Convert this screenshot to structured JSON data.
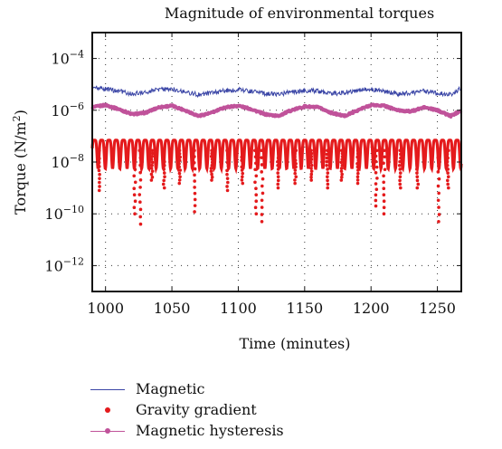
{
  "chart_data": {
    "type": "line",
    "title": "Magnitude of environmental torques",
    "xlabel": "Time (minutes)",
    "ylabel_base": "Torque (N/m",
    "ylabel_sup": "2",
    "ylabel_tail": ")",
    "xlim": [
      990,
      1268
    ],
    "ylim_log10": [
      -13,
      -3
    ],
    "yscale": "log",
    "grid": true,
    "legend_position": "below",
    "x_ticks": [
      1000,
      1050,
      1100,
      1150,
      1200,
      1250
    ],
    "x_tick_labels": [
      "1000",
      "1050",
      "1100",
      "1150",
      "1200",
      "1250"
    ],
    "y_ticks_exp": [
      -4,
      -6,
      -8,
      -10,
      -12
    ],
    "y_tick_labels": [
      {
        "base": "10",
        "exp": "−4"
      },
      {
        "base": "10",
        "exp": "−6"
      },
      {
        "base": "10",
        "exp": "−8"
      },
      {
        "base": "10",
        "exp": "−10"
      },
      {
        "base": "10",
        "exp": "−12"
      }
    ],
    "series": [
      {
        "name": "Magnetic",
        "color": "#3a45a6",
        "style": "line",
        "x": [
          990,
          1000,
          1010,
          1020,
          1030,
          1040,
          1050,
          1060,
          1070,
          1080,
          1090,
          1100,
          1110,
          1120,
          1130,
          1140,
          1150,
          1160,
          1170,
          1180,
          1190,
          1200,
          1210,
          1220,
          1230,
          1240,
          1250,
          1260,
          1268
        ],
        "y": [
          7.5e-06,
          6.5e-06,
          5.5e-06,
          4.2e-06,
          5e-06,
          6.2e-06,
          6.6e-06,
          5.2e-06,
          4e-06,
          4.6e-06,
          5.8e-06,
          6.3e-06,
          5.5e-06,
          4.5e-06,
          4.2e-06,
          5e-06,
          5.8e-06,
          5.6e-06,
          4.4e-06,
          4.8e-06,
          6e-06,
          6.4e-06,
          5.4e-06,
          4.3e-06,
          4.6e-06,
          5.6e-06,
          4.4e-06,
          4.2e-06,
          7e-06
        ]
      },
      {
        "name": "Gravity gradient",
        "color": "#e41a1c",
        "style": "points",
        "base_x": [
          990,
          1268
        ],
        "base_y": [
          7e-08,
          7e-08
        ],
        "dip_x": [
          995,
          1022,
          1026,
          1035,
          1044,
          1056,
          1067,
          1080,
          1092,
          1103,
          1113,
          1118,
          1130,
          1143,
          1155,
          1167,
          1178,
          1190,
          1204,
          1210,
          1222,
          1235,
          1251,
          1258
        ],
        "dip_y": [
          8e-10,
          1e-10,
          4e-11,
          2e-09,
          1e-09,
          1.5e-09,
          1.2e-10,
          2e-09,
          8e-10,
          1.5e-09,
          1e-10,
          5e-11,
          1e-09,
          1.5e-09,
          2e-09,
          1e-09,
          2e-09,
          1.5e-09,
          2e-10,
          1e-10,
          1e-09,
          1e-09,
          5e-11,
          1e-09
        ]
      },
      {
        "name": "Magnetic hysteresis",
        "color": "#c0529a",
        "style": "line-markers",
        "x": [
          990,
          1000,
          1010,
          1020,
          1030,
          1040,
          1050,
          1060,
          1070,
          1080,
          1090,
          1100,
          1110,
          1120,
          1130,
          1140,
          1150,
          1160,
          1170,
          1180,
          1190,
          1200,
          1210,
          1220,
          1230,
          1240,
          1250,
          1260,
          1268
        ],
        "y": [
          1.3e-06,
          1.6e-06,
          1.1e-06,
          7e-07,
          8e-07,
          1.3e-06,
          1.5e-06,
          1e-06,
          6e-07,
          8e-07,
          1.3e-06,
          1.5e-06,
          1.1e-06,
          7e-07,
          6e-07,
          1e-06,
          1.4e-06,
          1.3e-06,
          8e-07,
          6e-07,
          1e-06,
          1.6e-06,
          1.5e-06,
          1e-06,
          9e-07,
          1.3e-06,
          1e-06,
          6e-07,
          1e-06
        ]
      }
    ]
  }
}
